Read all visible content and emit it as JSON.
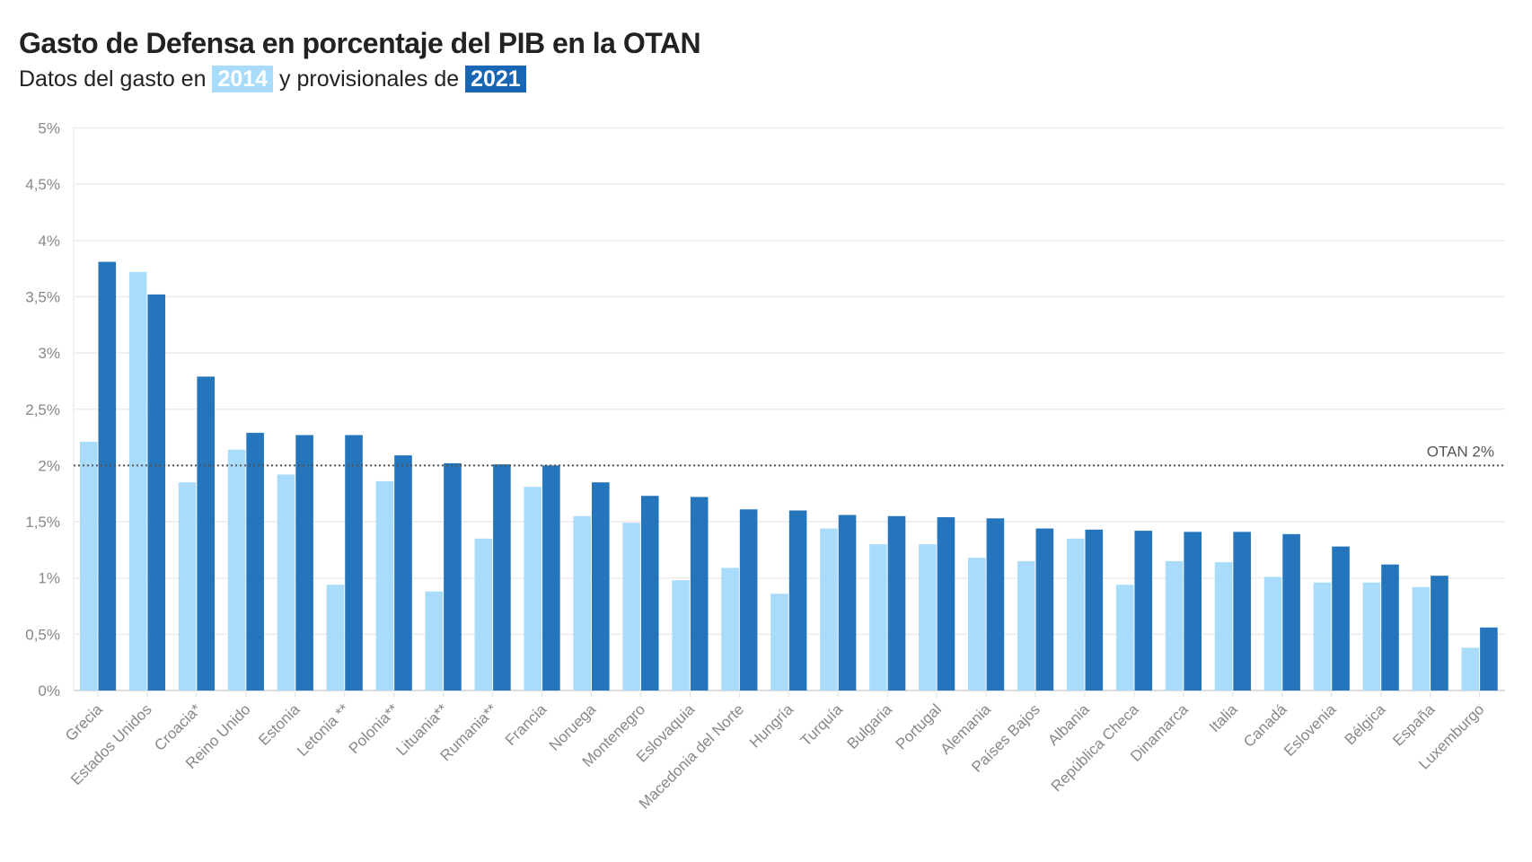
{
  "chart_data": {
    "type": "bar",
    "title": "Gasto de Defensa en porcentaje del PIB en la OTAN",
    "subtitle_parts": [
      "Datos del gasto en",
      "2014",
      "y provisionales de",
      "2021"
    ],
    "categories": [
      "Grecia",
      "Estados Unidos",
      "Croacia*",
      "Reino Unido",
      "Estonia",
      "Letonia **",
      "Polonia**",
      "Lituania**",
      "Rumania**",
      "Francia",
      "Noruega",
      "Montenegro",
      "Eslovaquia",
      "Macedonia del Norte",
      "Hungría",
      "Turquía",
      "Bulgaria",
      "Portugal",
      "Alemania",
      "Países Bajos",
      "Albania",
      "República Checa",
      "Dinamarca",
      "Italia",
      "Canadá",
      "Eslovenia",
      "Bélgica",
      "España",
      "Luxemburgo"
    ],
    "series": [
      {
        "name": "2014",
        "color": "#a9dcfa",
        "values": [
          2.21,
          3.72,
          1.85,
          2.14,
          1.92,
          0.94,
          1.86,
          0.88,
          1.35,
          1.81,
          1.55,
          1.49,
          0.98,
          1.09,
          0.86,
          1.44,
          1.3,
          1.3,
          1.18,
          1.15,
          1.35,
          0.94,
          1.15,
          1.14,
          1.01,
          0.96,
          0.96,
          0.92,
          0.38
        ]
      },
      {
        "name": "2021",
        "color": "#2475bb",
        "values": [
          3.81,
          3.52,
          2.79,
          2.29,
          2.27,
          2.27,
          2.09,
          2.02,
          2.01,
          2.0,
          1.85,
          1.73,
          1.72,
          1.61,
          1.6,
          1.56,
          1.55,
          1.54,
          1.53,
          1.44,
          1.43,
          1.42,
          1.41,
          1.41,
          1.39,
          1.28,
          1.12,
          1.02,
          0.56
        ]
      }
    ],
    "yticks": [
      0,
      0.5,
      1,
      1.5,
      2,
      2.5,
      3,
      3.5,
      4,
      4.5,
      5
    ],
    "ytick_labels": [
      "0%",
      "0,5%",
      "1%",
      "1,5%",
      "2%",
      "2,5%",
      "3%",
      "3,5%",
      "4%",
      "4,5%",
      "5%"
    ],
    "ylim": [
      0,
      5
    ],
    "grid": true,
    "reference_line": {
      "value": 2,
      "label": "OTAN 2%",
      "style": "dotted"
    }
  }
}
